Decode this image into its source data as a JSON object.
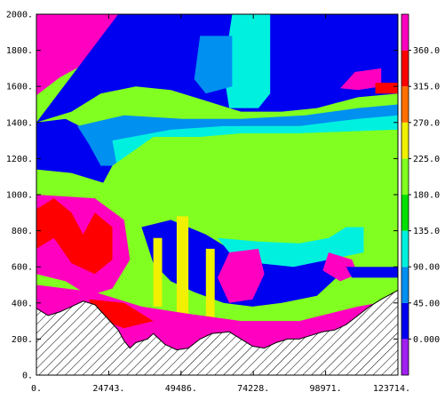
{
  "chart_data": {
    "type": "heatmap",
    "title": "",
    "xlabel": "",
    "ylabel": "",
    "xlim": [
      0,
      123714
    ],
    "ylim": [
      0,
      2000
    ],
    "x_ticks": [
      "0.",
      "24743.",
      "49486.",
      "74228.",
      "98971.",
      "123714."
    ],
    "x_tick_values": [
      0,
      24743,
      49486,
      74228,
      98971,
      123714
    ],
    "y_ticks": [
      "0.",
      "200.",
      "400.",
      "600.",
      "800.",
      "1000.",
      "1200.",
      "1400.",
      "1600.",
      "1800.",
      "2000."
    ],
    "y_tick_values": [
      0,
      200,
      400,
      600,
      800,
      1000,
      1200,
      1400,
      1600,
      1800,
      2000
    ],
    "colorbar": {
      "labels": [
        "0.000",
        "45.00",
        "90.00",
        "135.0",
        "180.0",
        "225.0",
        "270.0",
        "315.0",
        "360.0"
      ],
      "levels": [
        0,
        45,
        90,
        135,
        180,
        225,
        270,
        315,
        360
      ],
      "range": [
        -45,
        405
      ],
      "colors": [
        "#a020f0",
        "#0000f0",
        "#0090f0",
        "#00f0e0",
        "#00e000",
        "#80ff20",
        "#f0f000",
        "#ff7000",
        "#ff0000",
        "#ff00c0"
      ]
    },
    "regions": [
      {
        "name": "upper-left-red",
        "value": 360,
        "points": [
          [
            0,
            2000
          ],
          [
            28000,
            2000
          ],
          [
            30000,
            1850
          ],
          [
            24000,
            1780
          ],
          [
            16000,
            1720
          ],
          [
            8000,
            1650
          ],
          [
            0,
            1550
          ]
        ]
      },
      {
        "name": "upper-left-pink-spot",
        "value": 360,
        "points": [
          [
            33000,
            1960
          ],
          [
            36000,
            1960
          ],
          [
            36000,
            1880
          ],
          [
            33000,
            1880
          ]
        ]
      },
      {
        "name": "upper-blue-band",
        "value": 22,
        "points": [
          [
            28000,
            2000
          ],
          [
            123714,
            2000
          ],
          [
            123714,
            1560
          ],
          [
            110000,
            1540
          ],
          [
            96000,
            1480
          ],
          [
            84000,
            1460
          ],
          [
            70000,
            1460
          ],
          [
            58000,
            1520
          ],
          [
            46000,
            1580
          ],
          [
            34000,
            1600
          ],
          [
            22000,
            1560
          ],
          [
            12000,
            1460
          ],
          [
            0,
            1400
          ]
        ]
      },
      {
        "name": "upper-cyan-streak",
        "value": 112,
        "points": [
          [
            67000,
            2000
          ],
          [
            80000,
            2000
          ],
          [
            80000,
            1560
          ],
          [
            76000,
            1480
          ],
          [
            66000,
            1480
          ],
          [
            64000,
            1680
          ]
        ]
      },
      {
        "name": "upper-light-blue",
        "value": 67,
        "points": [
          [
            56000,
            1880
          ],
          [
            67000,
            1880
          ],
          [
            67000,
            1600
          ],
          [
            58000,
            1560
          ],
          [
            54000,
            1640
          ]
        ]
      },
      {
        "name": "upper-right-red",
        "value": 360,
        "points": [
          [
            109000,
            1680
          ],
          [
            118000,
            1700
          ],
          [
            118000,
            1600
          ],
          [
            110000,
            1580
          ],
          [
            104000,
            1590
          ]
        ]
      },
      {
        "name": "upper-right-orange",
        "value": 315,
        "points": [
          [
            116000,
            1620
          ],
          [
            123714,
            1620
          ],
          [
            123714,
            1560
          ],
          [
            116000,
            1560
          ]
        ]
      },
      {
        "name": "left-blue-upper",
        "value": 22,
        "points": [
          [
            0,
            1400
          ],
          [
            10000,
            1420
          ],
          [
            22000,
            1320
          ],
          [
            28000,
            1180
          ],
          [
            24000,
            1060
          ],
          [
            12000,
            1120
          ],
          [
            0,
            1140
          ]
        ]
      },
      {
        "name": "mid-light-blue",
        "value": 67,
        "points": [
          [
            14000,
            1380
          ],
          [
            30000,
            1440
          ],
          [
            50000,
            1420
          ],
          [
            70000,
            1420
          ],
          [
            92000,
            1440
          ],
          [
            110000,
            1480
          ],
          [
            123714,
            1500
          ],
          [
            123714,
            1400
          ],
          [
            90000,
            1380
          ],
          [
            70000,
            1380
          ],
          [
            50000,
            1300
          ],
          [
            34000,
            1160
          ],
          [
            22000,
            1160
          ],
          [
            18000,
            1280
          ]
        ]
      },
      {
        "name": "mid-cyan-band",
        "value": 112,
        "points": [
          [
            26000,
            1300
          ],
          [
            46000,
            1360
          ],
          [
            64000,
            1380
          ],
          [
            90000,
            1380
          ],
          [
            110000,
            1420
          ],
          [
            123714,
            1440
          ],
          [
            123714,
            1360
          ],
          [
            90000,
            1340
          ],
          [
            70000,
            1340
          ],
          [
            54000,
            1300
          ],
          [
            38000,
            1160
          ],
          [
            28000,
            1120
          ]
        ]
      },
      {
        "name": "central-green",
        "value": 180,
        "points": [
          [
            26000,
            1160
          ],
          [
            40000,
            1320
          ],
          [
            56000,
            1320
          ],
          [
            70000,
            1340
          ],
          [
            90000,
            1340
          ],
          [
            123714,
            1360
          ],
          [
            123714,
            880
          ],
          [
            112000,
            920
          ],
          [
            100000,
            820
          ],
          [
            88000,
            780
          ],
          [
            76000,
            760
          ],
          [
            66000,
            780
          ],
          [
            56000,
            820
          ],
          [
            46000,
            900
          ],
          [
            38000,
            960
          ],
          [
            30000,
            1000
          ],
          [
            22000,
            1040
          ]
        ]
      },
      {
        "name": "central-light-green",
        "value": 202,
        "points": [
          [
            42000,
            1220
          ],
          [
            60000,
            1240
          ],
          [
            80000,
            1280
          ],
          [
            100000,
            1300
          ],
          [
            123714,
            1310
          ],
          [
            123714,
            960
          ],
          [
            110000,
            990
          ],
          [
            98000,
            880
          ],
          [
            84000,
            850
          ],
          [
            70000,
            870
          ],
          [
            58000,
            900
          ],
          [
            50000,
            1000
          ],
          [
            44000,
            1100
          ]
        ]
      },
      {
        "name": "left-red-lower",
        "value": 360,
        "points": [
          [
            0,
            1000
          ],
          [
            20000,
            980
          ],
          [
            30000,
            860
          ],
          [
            32000,
            640
          ],
          [
            26000,
            480
          ],
          [
            18000,
            440
          ],
          [
            10000,
            520
          ],
          [
            0,
            560
          ]
        ]
      },
      {
        "name": "left-orange-lower",
        "value": 315,
        "points": [
          [
            0,
            920
          ],
          [
            6000,
            980
          ],
          [
            12000,
            900
          ],
          [
            16000,
            780
          ],
          [
            20000,
            900
          ],
          [
            26000,
            820
          ],
          [
            26000,
            640
          ],
          [
            20000,
            560
          ],
          [
            12000,
            620
          ],
          [
            6000,
            760
          ],
          [
            0,
            700
          ]
        ]
      },
      {
        "name": "center-blue-lower",
        "value": 22,
        "points": [
          [
            36000,
            820
          ],
          [
            46000,
            860
          ],
          [
            58000,
            780
          ],
          [
            66000,
            700
          ],
          [
            74000,
            660
          ],
          [
            84000,
            640
          ],
          [
            94000,
            660
          ],
          [
            102000,
            680
          ],
          [
            104000,
            560
          ],
          [
            96000,
            440
          ],
          [
            84000,
            400
          ],
          [
            74000,
            380
          ],
          [
            64000,
            400
          ],
          [
            54000,
            460
          ],
          [
            46000,
            520
          ],
          [
            40000,
            620
          ]
        ]
      },
      {
        "name": "center-cyan-lower",
        "value": 112,
        "points": [
          [
            62000,
            760
          ],
          [
            76000,
            740
          ],
          [
            90000,
            730
          ],
          [
            100000,
            760
          ],
          [
            106000,
            820
          ],
          [
            112000,
            820
          ],
          [
            112000,
            680
          ],
          [
            100000,
            640
          ],
          [
            88000,
            600
          ],
          [
            76000,
            620
          ],
          [
            66000,
            680
          ]
        ]
      },
      {
        "name": "center-red-lower",
        "value": 360,
        "points": [
          [
            66000,
            680
          ],
          [
            76000,
            700
          ],
          [
            78000,
            560
          ],
          [
            74000,
            420
          ],
          [
            66000,
            400
          ],
          [
            62000,
            540
          ]
        ]
      },
      {
        "name": "right-red-lower",
        "value": 360,
        "points": [
          [
            100000,
            680
          ],
          [
            108000,
            640
          ],
          [
            110000,
            560
          ],
          [
            104000,
            520
          ],
          [
            98000,
            580
          ]
        ]
      },
      {
        "name": "right-blue-lower",
        "value": 22,
        "points": [
          [
            106000,
            600
          ],
          [
            123714,
            600
          ],
          [
            123714,
            540
          ],
          [
            108000,
            540
          ]
        ]
      },
      {
        "name": "yellow-column-1",
        "value": 247,
        "points": [
          [
            48000,
            880
          ],
          [
            52000,
            880
          ],
          [
            52000,
            300
          ],
          [
            48000,
            300
          ]
        ]
      },
      {
        "name": "yellow-column-2",
        "value": 247,
        "points": [
          [
            40000,
            760
          ],
          [
            43000,
            760
          ],
          [
            43000,
            380
          ],
          [
            40000,
            380
          ]
        ]
      },
      {
        "name": "yellow-column-3",
        "value": 247,
        "points": [
          [
            58000,
            700
          ],
          [
            61000,
            700
          ],
          [
            61000,
            280
          ],
          [
            58000,
            280
          ]
        ]
      },
      {
        "name": "lower-red-base",
        "value": 360,
        "points": [
          [
            0,
            500
          ],
          [
            20000,
            460
          ],
          [
            36000,
            380
          ],
          [
            52000,
            340
          ],
          [
            70000,
            300
          ],
          [
            90000,
            300
          ],
          [
            110000,
            380
          ],
          [
            123714,
            420
          ],
          [
            123714,
            0
          ],
          [
            0,
            0
          ]
        ]
      },
      {
        "name": "lower-orange-base",
        "value": 315,
        "points": [
          [
            18000,
            420
          ],
          [
            30000,
            400
          ],
          [
            40000,
            300
          ],
          [
            30000,
            260
          ],
          [
            20000,
            320
          ]
        ]
      }
    ],
    "topography": [
      [
        0,
        370
      ],
      [
        4000,
        330
      ],
      [
        8000,
        350
      ],
      [
        12000,
        380
      ],
      [
        16000,
        410
      ],
      [
        20000,
        390
      ],
      [
        24000,
        320
      ],
      [
        28000,
        250
      ],
      [
        30000,
        190
      ],
      [
        32000,
        150
      ],
      [
        34000,
        180
      ],
      [
        38000,
        200
      ],
      [
        40000,
        230
      ],
      [
        44000,
        170
      ],
      [
        48000,
        140
      ],
      [
        52000,
        150
      ],
      [
        56000,
        200
      ],
      [
        60000,
        230
      ],
      [
        66000,
        240
      ],
      [
        70000,
        200
      ],
      [
        74000,
        160
      ],
      [
        78000,
        150
      ],
      [
        82000,
        180
      ],
      [
        86000,
        200
      ],
      [
        90000,
        200
      ],
      [
        94000,
        220
      ],
      [
        98000,
        240
      ],
      [
        102000,
        250
      ],
      [
        106000,
        280
      ],
      [
        110000,
        330
      ],
      [
        114000,
        380
      ],
      [
        118000,
        420
      ],
      [
        123714,
        470
      ]
    ]
  }
}
